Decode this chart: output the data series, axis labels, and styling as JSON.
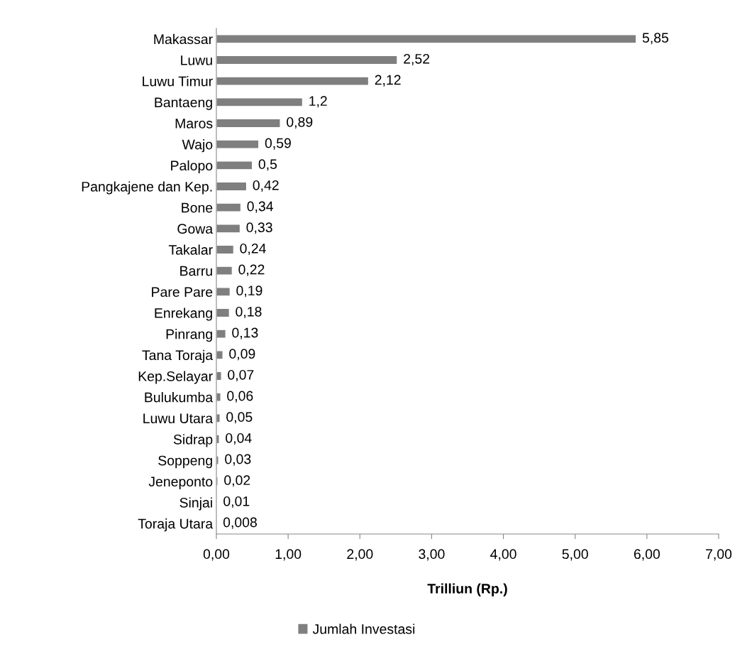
{
  "chart_data": {
    "type": "bar",
    "orientation": "horizontal",
    "xlabel": "Trilliun (Rp.)",
    "categories": [
      "Makassar",
      "Luwu",
      "Luwu Timur",
      "Bantaeng",
      "Maros",
      "Wajo",
      "Palopo",
      "Pangkajene dan Kep.",
      "Bone",
      "Gowa",
      "Takalar",
      "Barru",
      "Pare Pare",
      "Enrekang",
      "Pinrang",
      "Tana Toraja",
      "Kep.Selayar",
      "Bulukumba",
      "Luwu Utara",
      "Sidrap",
      "Soppeng",
      "Jeneponto",
      "Sinjai",
      "Toraja Utara"
    ],
    "series": [
      {
        "name": "Jumlah Investasi",
        "color": "#7f7f7f",
        "values": [
          5.85,
          2.52,
          2.12,
          1.2,
          0.89,
          0.59,
          0.5,
          0.42,
          0.34,
          0.33,
          0.24,
          0.22,
          0.19,
          0.18,
          0.13,
          0.09,
          0.07,
          0.06,
          0.05,
          0.04,
          0.03,
          0.02,
          0.01,
          0.008
        ],
        "value_labels": [
          "5,85",
          "2,52",
          "2,12",
          "1,2",
          "0,89",
          "0,59",
          "0,5",
          "0,42",
          "0,34",
          "0,33",
          "0,24",
          "0,22",
          "0,19",
          "0,18",
          "0,13",
          "0,09",
          "0,07",
          "0,06",
          "0,05",
          "0,04",
          "0,03",
          "0,02",
          "0,01",
          "0,008"
        ]
      }
    ],
    "xlim": [
      0,
      7
    ],
    "xticks": [
      {
        "value": 0,
        "label": "0,00"
      },
      {
        "value": 1,
        "label": "1,00"
      },
      {
        "value": 2,
        "label": "2,00"
      },
      {
        "value": 3,
        "label": "3,00"
      },
      {
        "value": 4,
        "label": "4,00"
      },
      {
        "value": 5,
        "label": "5,00"
      },
      {
        "value": 6,
        "label": "6,00"
      },
      {
        "value": 7,
        "label": "7,00"
      }
    ],
    "legend": "bottom"
  }
}
